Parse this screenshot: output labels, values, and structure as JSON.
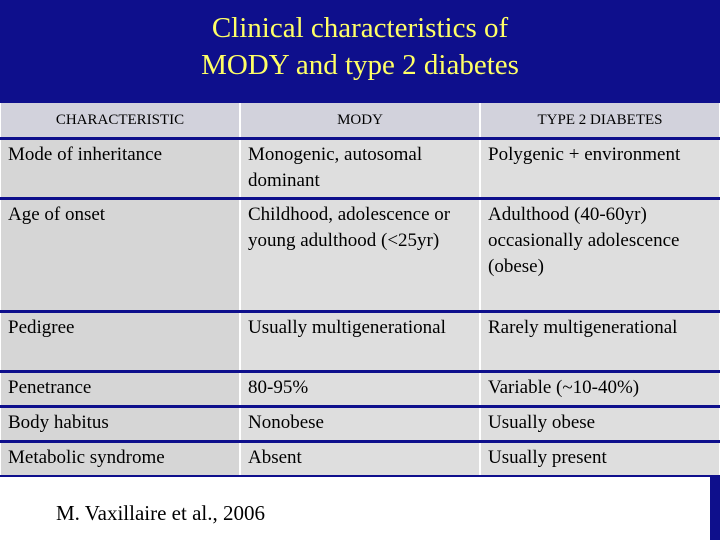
{
  "slide": {
    "title_line1": "Clinical characteristics of",
    "title_line2": "MODY and type 2 diabetes"
  },
  "table": {
    "headers": [
      "CHARACTERISTIC",
      "MODY",
      "TYPE 2 DIABETES"
    ],
    "rows": [
      [
        "Mode of inheritance",
        "Monogenic, autosomal dominant",
        "Polygenic + environment"
      ],
      [
        "Age of onset",
        "Childhood, adolescence or young adulthood (<25yr)",
        "Adulthood (40-60yr) occasionally adolescence (obese)"
      ],
      [
        "Pedigree",
        "Usually multigenerational",
        "Rarely multigenerational"
      ],
      [
        "Penetrance",
        "80-95%",
        "Variable (~10-40%)"
      ],
      [
        "Body habitus",
        "Nonobese",
        "Usually obese"
      ],
      [
        "Metabolic syndrome",
        "Absent",
        "Usually present"
      ]
    ]
  },
  "footer": {
    "citation": "M. Vaxillaire et al., 2006"
  },
  "colors": {
    "background": "#0e0f8c",
    "title": "#ffff66",
    "header_cell": "#d2d2dc",
    "body_cell": "#dedede"
  }
}
